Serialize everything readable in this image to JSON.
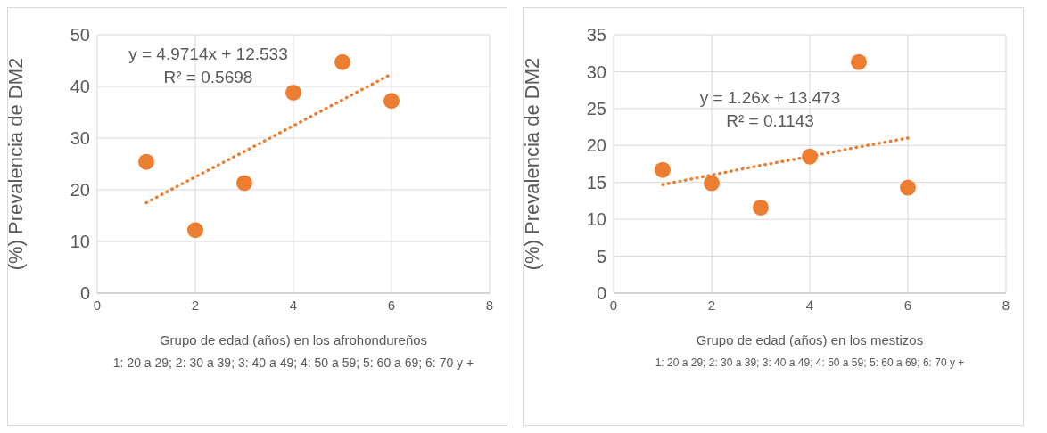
{
  "chart_data": [
    {
      "type": "scatter",
      "x": [
        1,
        2,
        3,
        4,
        5,
        6
      ],
      "xlabel": "Grupo de edad (años) en los afrohondureños",
      "ylabel": "(%) Prevalencia de DM2",
      "xlim": [
        0,
        8
      ],
      "xticks": [
        0,
        2,
        4,
        6,
        8
      ],
      "ylim": [
        0,
        50
      ],
      "yticks": [
        0,
        10,
        20,
        30,
        40,
        50
      ],
      "grid": true,
      "series": [
        {
          "type": "scatter",
          "color": "#ed7d31",
          "marker": "circle",
          "values": [
            25.4,
            12.2,
            21.3,
            38.8,
            44.7,
            37.2
          ]
        },
        {
          "type": "line",
          "color": "#ed7d31",
          "line_style": "dotted",
          "values": [
            17.5,
            22.5,
            27.4,
            32.4,
            37.4,
            42.4
          ]
        }
      ],
      "annotations": [
        "y = 4.9714x + 12.533",
        "R² = 0.5698",
        "1: 20 a 29; 2: 30 a 39; 3: 40 a 49; 4: 50 a 59; 5: 60 a 69; 6: 70 y +"
      ]
    },
    {
      "type": "scatter",
      "x": [
        1,
        2,
        3,
        4,
        5,
        6
      ],
      "xlabel": "Grupo de edad (años) en los mestizos",
      "ylabel": "(%) Prevalencia de DM2",
      "xlim": [
        0,
        8
      ],
      "xticks": [
        0,
        2,
        4,
        6,
        8
      ],
      "ylim": [
        0,
        35
      ],
      "yticks": [
        0,
        5,
        10,
        15,
        20,
        25,
        30,
        35
      ],
      "grid": true,
      "series": [
        {
          "type": "scatter",
          "color": "#ed7d31",
          "marker": "circle",
          "values": [
            16.7,
            14.9,
            11.6,
            18.5,
            31.3,
            14.3
          ]
        },
        {
          "type": "line",
          "color": "#ed7d31",
          "line_style": "dotted",
          "values": [
            14.7,
            16.0,
            17.3,
            18.5,
            19.8,
            21.0
          ]
        }
      ],
      "annotations": [
        "y = 1.26x + 13.473",
        "R² = 0.1143",
        "1: 20 a 29; 2: 30 a 39; 3: 40 a 49; 4: 50 a 59; 5: 60 a 69; 6: 70 y +"
      ]
    }
  ]
}
